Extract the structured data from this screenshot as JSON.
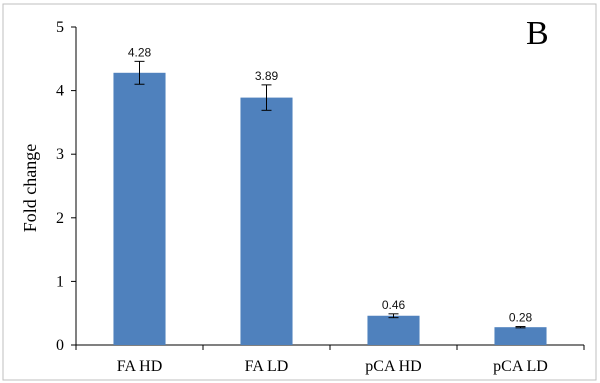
{
  "panel_label": "B",
  "colors": {
    "bar": "#4f81bd",
    "axis": "#000000",
    "frame": "#bfbfbf",
    "error_bar": "#000000"
  },
  "chart_data": {
    "type": "bar",
    "categories": [
      "FA HD",
      "FA LD",
      "pCA HD",
      "pCA LD"
    ],
    "values": [
      4.28,
      3.89,
      0.46,
      0.28
    ],
    "data_labels": [
      "4.28",
      "3.89",
      "0.46",
      "0.28"
    ],
    "error": [
      0.18,
      0.2,
      0.03,
      0.01
    ],
    "title": "",
    "xlabel": "",
    "ylabel": "Fold change",
    "ylim": [
      0,
      5
    ],
    "yticks": [
      0,
      1,
      2,
      3,
      4,
      5
    ],
    "grid": false,
    "legend": "none"
  }
}
